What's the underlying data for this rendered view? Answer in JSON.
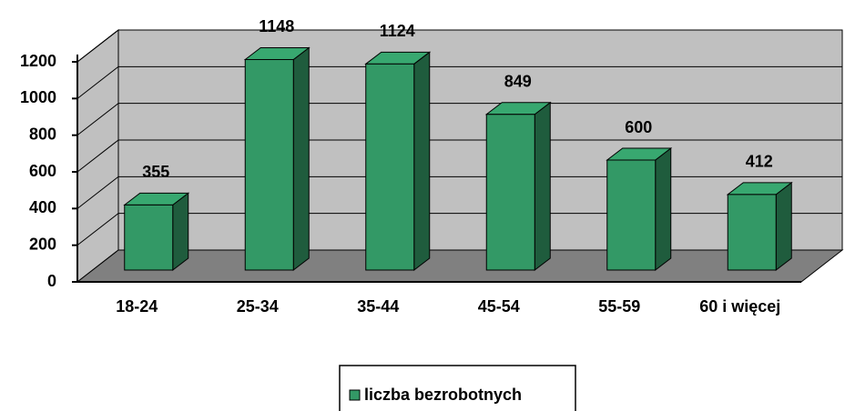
{
  "chart_data": {
    "type": "bar",
    "categories": [
      "18-24",
      "25-34",
      "35-44",
      "45-54",
      "55-59",
      "60 i więcej"
    ],
    "series": [
      {
        "name": "liczba bezrobotnych",
        "color": "#339966",
        "values": [
          355,
          1148,
          1124,
          849,
          600,
          412
        ]
      }
    ],
    "ylim": [
      0,
      1200
    ],
    "yticks": [
      0,
      200,
      400,
      600,
      800,
      1000,
      1200
    ],
    "grid": true,
    "legend": "bottom"
  }
}
